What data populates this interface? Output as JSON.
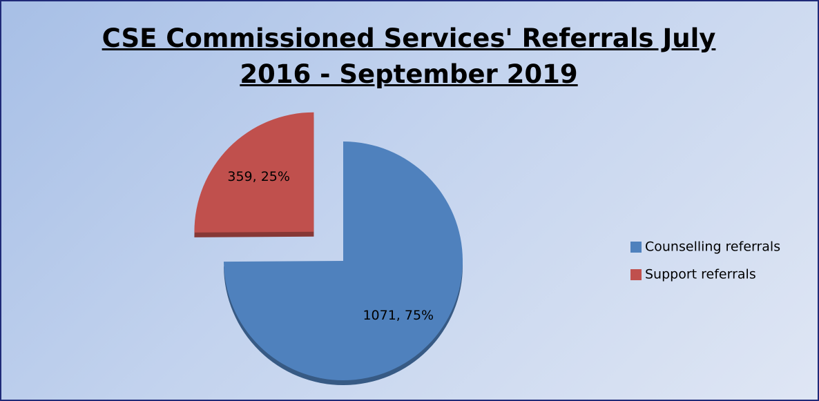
{
  "chart_data": {
    "type": "pie",
    "title": "CSE Commissioned Services' Referrals July 2016 - September 2019",
    "categories": [
      "Counselling referrals",
      "Support referrals"
    ],
    "values": [
      1071,
      359
    ],
    "value_labels": [
      "1071, 75%",
      "359, 25%"
    ],
    "colors": [
      "#4f81bd",
      "#c0504d"
    ],
    "legend": "right"
  }
}
